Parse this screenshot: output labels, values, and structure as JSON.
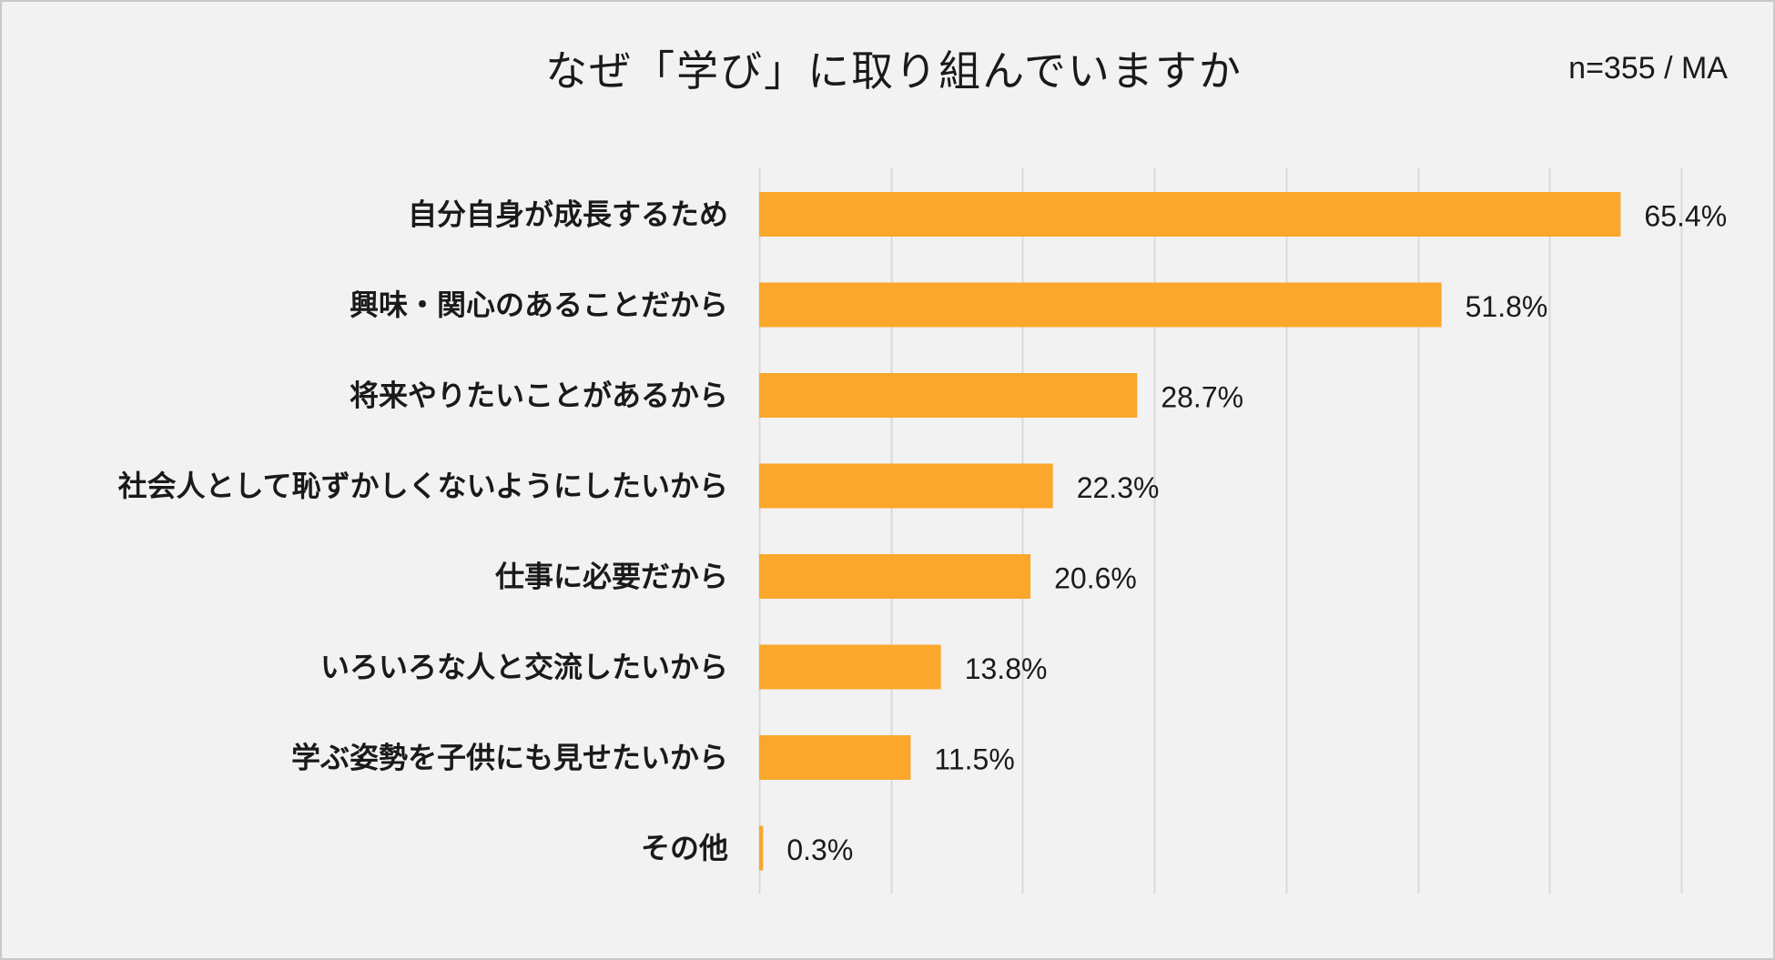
{
  "chart_data": {
    "type": "bar",
    "orientation": "horizontal",
    "title": "なぜ「学び」に取り組んでいますか",
    "note": "n=355 / MA",
    "categories": [
      "自分自身が成長するため",
      "興味・関心のあることだから",
      "将来やりたいことがあるから",
      "社会人として恥ずかしくないようにしたいから",
      "仕事に必要だから",
      "いろいろな人と交流したいから",
      "学ぶ姿勢を子供にも見せたいから",
      "その他"
    ],
    "values": [
      65.4,
      51.8,
      28.7,
      22.3,
      20.6,
      13.8,
      11.5,
      0.3
    ],
    "value_labels": [
      "65.4%",
      "51.8%",
      "28.7%",
      "22.3%",
      "20.6%",
      "13.8%",
      "11.5%",
      "0.3%"
    ],
    "xlim": [
      0,
      70
    ],
    "grid": true,
    "legend": "none",
    "bar_color": "#FAA72B",
    "grid_color": "#d9d9d9",
    "background_color": "#f2f2f2"
  }
}
